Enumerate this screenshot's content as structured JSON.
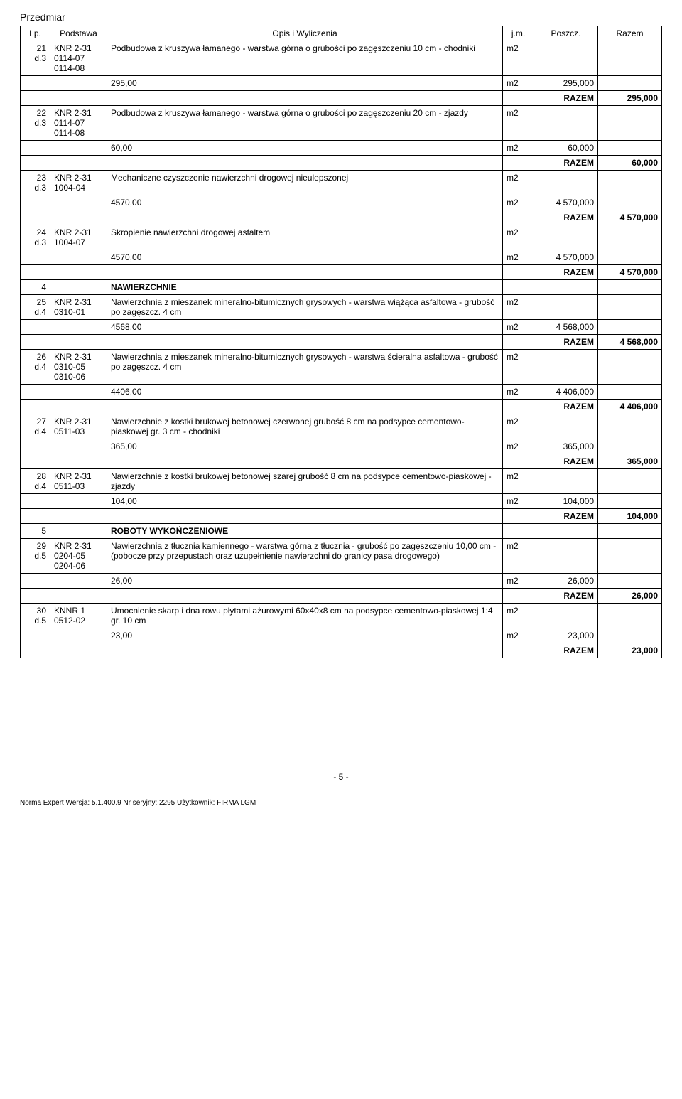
{
  "title": "Przedmiar",
  "columns": {
    "lp": "Lp.",
    "podstawa": "Podstawa",
    "opis": "Opis i Wyliczenia",
    "jm": "j.m.",
    "poszcz": "Poszcz.",
    "razem": "Razem"
  },
  "razem_label": "RAZEM",
  "items": [
    {
      "lp": "21 d.3",
      "pod": "KNR 2-31 0114-07 0114-08",
      "opis": "Podbudowa z kruszywa łamanego - warstwa górna o grubości po zagęszczeniu 10 cm - chodniki",
      "jm": "m2",
      "calc": "295,00",
      "calc_jm": "m2",
      "poszcz": "295,000",
      "razem": "295,000"
    },
    {
      "lp": "22 d.3",
      "pod": "KNR 2-31 0114-07 0114-08",
      "opis": "Podbudowa z kruszywa łamanego - warstwa górna o grubości po zagęszczeniu 20 cm - zjazdy",
      "jm": "m2",
      "calc": "60,00",
      "calc_jm": "m2",
      "poszcz": "60,000",
      "razem": "60,000"
    },
    {
      "lp": "23 d.3",
      "pod": "KNR 2-31 1004-04",
      "opis": "Mechaniczne czyszczenie nawierzchni drogowej nieulepszonej",
      "jm": "m2",
      "calc": "4570,00",
      "calc_jm": "m2",
      "poszcz": "4 570,000",
      "razem": "4 570,000"
    },
    {
      "lp": "24 d.3",
      "pod": "KNR 2-31 1004-07",
      "opis": "Skropienie nawierzchni drogowej asfaltem",
      "jm": "m2",
      "calc": "4570,00",
      "calc_jm": "m2",
      "poszcz": "4 570,000",
      "razem": "4 570,000"
    },
    {
      "section": true,
      "lp": "4",
      "opis": "NAWIERZCHNIE"
    },
    {
      "lp": "25 d.4",
      "pod": "KNR 2-31 0310-01",
      "opis": "Nawierzchnia z mieszanek mineralno-bitumicznych grysowych - warstwa wiążąca asfaltowa - grubość po zagęszcz. 4 cm",
      "jm": "m2",
      "calc": "4568,00",
      "calc_jm": "m2",
      "poszcz": "4 568,000",
      "razem": "4 568,000"
    },
    {
      "lp": "26 d.4",
      "pod": "KNR 2-31 0310-05 0310-06",
      "opis": "Nawierzchnia z mieszanek mineralno-bitumicznych grysowych - warstwa ścieralna asfaltowa - grubość po zagęszcz. 4 cm",
      "jm": "m2",
      "calc": "4406,00",
      "calc_jm": "m2",
      "poszcz": "4 406,000",
      "razem": "4 406,000"
    },
    {
      "lp": "27 d.4",
      "pod": "KNR 2-31 0511-03",
      "opis": "Nawierzchnie z kostki brukowej betonowej czerwonej grubość 8 cm na podsypce cementowo-piaskowej gr. 3 cm - chodniki",
      "jm": "m2",
      "calc": "365,00",
      "calc_jm": "m2",
      "poszcz": "365,000",
      "razem": "365,000"
    },
    {
      "lp": "28 d.4",
      "pod": "KNR 2-31 0511-03",
      "opis": "Nawierzchnie z kostki brukowej betonowej szarej grubość 8 cm na podsypce cementowo-piaskowej - zjazdy",
      "jm": "m2",
      "calc": "104,00",
      "calc_jm": "m2",
      "poszcz": "104,000",
      "razem": "104,000"
    },
    {
      "section": true,
      "lp": "5",
      "opis": "ROBOTY WYKOŃCZENIOWE"
    },
    {
      "lp": "29 d.5",
      "pod": "KNR 2-31 0204-05 0204-06",
      "opis": "Nawierzchnia z tłucznia kamiennego - warstwa górna z tłucznia - grubość po zagęszczeniu 10,00 cm - (pobocze przy przepustach oraz uzupełnienie nawierzchni do granicy pasa drogowego)",
      "jm": "m2",
      "calc": "26,00",
      "calc_jm": "m2",
      "poszcz": "26,000",
      "razem": "26,000"
    },
    {
      "lp": "30 d.5",
      "pod": "KNNR 1 0512-02",
      "opis": "Umocnienie skarp i dna rowu płytami ażurowymi 60x40x8 cm na podsypce cementowo-piaskowej 1:4 gr. 10 cm",
      "jm": "m2",
      "calc": "23,00",
      "calc_jm": "m2",
      "poszcz": "23,000",
      "razem": "23,000"
    }
  ],
  "page_number": "- 5 -",
  "footer_text": "Norma Expert  Wersja: 5.1.400.9  Nr seryjny: 2295  Użytkownik: FIRMA LGM"
}
